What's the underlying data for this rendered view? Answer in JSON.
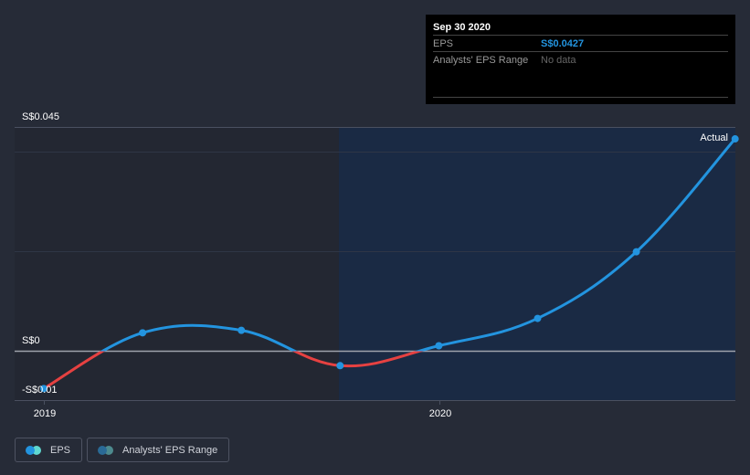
{
  "chart_data": {
    "type": "line",
    "title": "",
    "xlabel": "",
    "ylabel": "",
    "currency": "S$",
    "y_ticks": [
      "S$0.045",
      "S$0",
      "-S$0.01"
    ],
    "ylim": [
      -0.01,
      0.045
    ],
    "x_ticks": [
      "2019",
      "2020"
    ],
    "series": [
      {
        "name": "EPS",
        "color_positive": "#2394df",
        "color_negative": "#e64141",
        "x": [
          "Dec 2018",
          "Mar 2019",
          "Jun 2019",
          "Sep 2019",
          "Dec 2019",
          "Mar 2020",
          "Jun 2020",
          "Sep 2020"
        ],
        "values": [
          -0.0075,
          0.0037,
          0.0042,
          -0.0029,
          0.0011,
          0.0066,
          0.02,
          0.0427
        ]
      },
      {
        "name": "Analysts' EPS Range",
        "values": []
      }
    ],
    "grid": true,
    "legend_position": "bottom-left",
    "annotations": [
      "Actual"
    ]
  },
  "axis": {
    "y_top": "S$0.045",
    "y_zero": "S$0",
    "y_bottom": "-S$0.01",
    "x_2019": "2019",
    "x_2020": "2020"
  },
  "tooltip": {
    "date": "Sep 30 2020",
    "eps_label": "EPS",
    "eps_value": "S$0.0427",
    "range_label": "Analysts' EPS Range",
    "range_value": "No data"
  },
  "annotation": {
    "actual": "Actual"
  },
  "legend": {
    "eps": "EPS",
    "range": "Analysts' EPS Range"
  }
}
